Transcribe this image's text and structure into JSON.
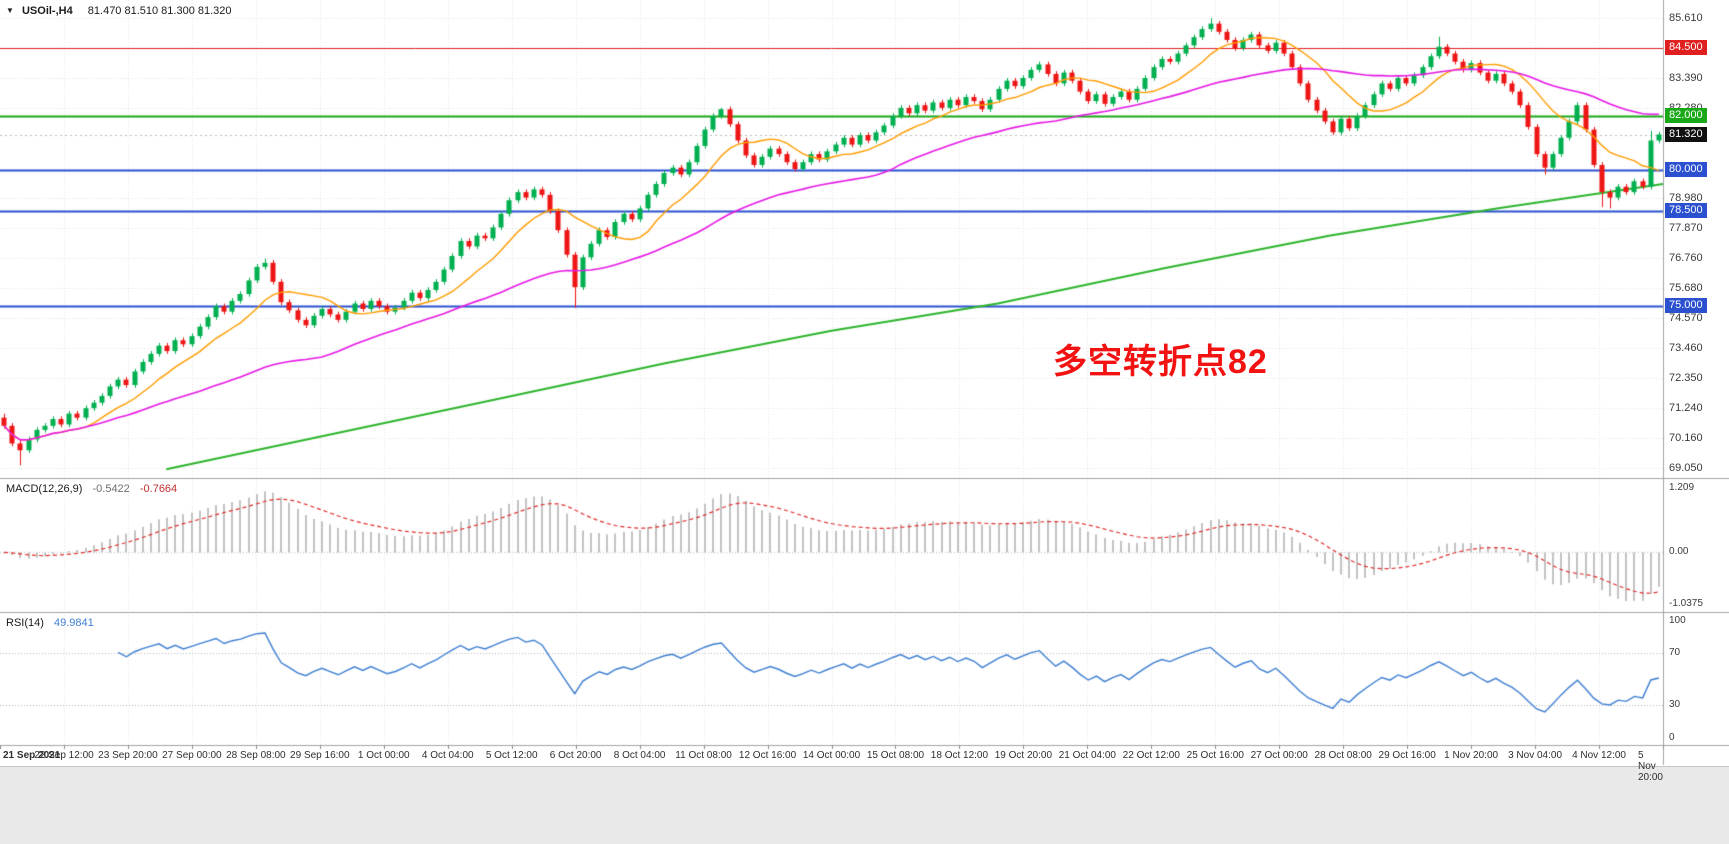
{
  "window": {
    "symbol_timeframe": "USOil-,H4",
    "ohlc": "81.470 81.510 81.300 81.320"
  },
  "annotation": {
    "text": "多空转折点82",
    "color": "#f21212"
  },
  "indicators": {
    "macd": {
      "label": "MACD(12,26,9)",
      "value_main": "-0.5422",
      "value_signal": "-0.7664"
    },
    "rsi": {
      "label": "RSI(14)",
      "value": "49.9841"
    }
  },
  "chart_data": {
    "type": "candlestick",
    "symbol": "USOil",
    "timeframe": "H4",
    "title": "USOil-,H4 81.470 81.510 81.300 81.320",
    "price_range": [
      68.68,
      86.27
    ],
    "y_tick_labels": [
      "85.610",
      "83.390",
      "82.280",
      "78.980",
      "77.870",
      "76.760",
      "75.680",
      "74.570",
      "73.460",
      "72.350",
      "71.240",
      "70.160",
      "69.050"
    ],
    "x_tick_labels": [
      "21 Sep 2021",
      "22 Sep 12:00",
      "23 Sep 20:00",
      "27 Sep 00:00",
      "28 Sep 08:00",
      "29 Sep 16:00",
      "1 Oct 00:00",
      "4 Oct 04:00",
      "5 Oct 12:00",
      "6 Oct 20:00",
      "8 Oct 04:00",
      "11 Oct 08:00",
      "12 Oct 16:00",
      "14 Oct 00:00",
      "15 Oct 08:00",
      "18 Oct 12:00",
      "19 Oct 20:00",
      "21 Oct 04:00",
      "22 Oct 12:00",
      "25 Oct 16:00",
      "27 Oct 00:00",
      "28 Oct 08:00",
      "29 Oct 16:00",
      "1 Nov 20:00",
      "3 Nov 04:00",
      "4 Nov 12:00",
      "5 Nov 20:00"
    ],
    "open_first": 70.9,
    "closes": [
      70.6,
      69.95,
      69.7,
      70.1,
      70.45,
      70.6,
      70.85,
      70.65,
      71.05,
      70.9,
      71.25,
      71.45,
      71.7,
      72.05,
      72.3,
      72.1,
      72.6,
      72.95,
      73.25,
      73.55,
      73.35,
      73.75,
      73.6,
      73.9,
      74.25,
      74.6,
      75.0,
      74.8,
      75.2,
      75.45,
      75.95,
      76.45,
      76.6,
      75.9,
      75.15,
      74.85,
      74.5,
      74.3,
      74.65,
      74.9,
      74.7,
      74.5,
      74.8,
      75.1,
      74.9,
      75.2,
      75.0,
      74.8,
      74.95,
      75.2,
      75.5,
      75.3,
      75.6,
      75.9,
      76.35,
      76.85,
      77.4,
      77.2,
      77.6,
      77.5,
      77.9,
      78.4,
      78.9,
      79.2,
      79.0,
      79.3,
      79.1,
      78.5,
      77.8,
      76.9,
      75.7,
      76.8,
      77.3,
      77.8,
      77.55,
      78.1,
      78.4,
      78.2,
      78.6,
      79.1,
      79.5,
      79.9,
      80.1,
      79.85,
      80.3,
      80.9,
      81.5,
      82.0,
      82.25,
      81.7,
      81.1,
      80.55,
      80.2,
      80.5,
      80.8,
      80.6,
      80.3,
      80.05,
      80.3,
      80.6,
      80.4,
      80.7,
      80.95,
      81.2,
      80.95,
      81.3,
      81.1,
      81.4,
      81.65,
      82.0,
      82.3,
      82.1,
      82.4,
      82.2,
      82.5,
      82.3,
      82.6,
      82.4,
      82.7,
      82.55,
      82.25,
      82.6,
      83.0,
      83.3,
      83.1,
      83.4,
      83.7,
      83.9,
      83.55,
      83.2,
      83.6,
      83.3,
      82.9,
      82.55,
      82.8,
      82.45,
      82.7,
      82.9,
      82.6,
      83.0,
      83.4,
      83.8,
      84.1,
      84.0,
      84.3,
      84.6,
      84.9,
      85.2,
      85.4,
      85.1,
      84.8,
      84.5,
      84.8,
      85.0,
      84.6,
      84.4,
      84.7,
      84.3,
      83.8,
      83.2,
      82.6,
      82.2,
      81.8,
      81.4,
      81.9,
      81.55,
      82.0,
      82.4,
      82.8,
      83.2,
      83.0,
      83.4,
      83.2,
      83.5,
      83.8,
      84.2,
      84.55,
      84.3,
      84.0,
      83.7,
      83.95,
      83.6,
      83.3,
      83.55,
      83.2,
      82.9,
      82.4,
      81.6,
      80.6,
      80.1,
      80.6,
      81.2,
      81.8,
      82.4,
      81.5,
      80.2,
      79.2,
      79.0,
      79.4,
      79.2,
      79.6,
      79.4,
      81.1,
      81.32
    ],
    "wick": 0.1,
    "wick_overrides": [
      {
        "i": 0,
        "high": 71.05
      },
      {
        "i": 2,
        "low": 69.15
      },
      {
        "i": 32,
        "high": 76.75
      },
      {
        "i": 70,
        "low": 74.95
      },
      {
        "i": 88,
        "high": 82.3
      },
      {
        "i": 148,
        "high": 85.6
      },
      {
        "i": 176,
        "high": 84.92
      },
      {
        "i": 189,
        "low": 79.85
      },
      {
        "i": 196,
        "low": 78.65
      },
      {
        "i": 197,
        "low": 78.6
      },
      {
        "i": 202,
        "high": 81.45
      }
    ],
    "hlines": [
      {
        "price": 84.5,
        "label": "84.500",
        "color": "#e02020",
        "width": 1
      },
      {
        "price": 82.0,
        "label": "82.000",
        "color": "#18a818",
        "width": 2
      },
      {
        "price": 80.0,
        "label": "80.000",
        "color": "#2b50d0",
        "width": 2
      },
      {
        "price": 78.5,
        "label": "78.500",
        "color": "#2b50d0",
        "width": 2
      },
      {
        "price": 75.0,
        "label": "75.000",
        "color": "#2b50d0",
        "width": 2
      }
    ],
    "current_price": {
      "price": 81.32,
      "label": "81.320",
      "badge_color": "#111111"
    },
    "ma": {
      "fast": {
        "period": 10,
        "color": "#ff9c00"
      },
      "mid": {
        "period": 40,
        "color": "#e619e6"
      },
      "slow": {
        "color": "#2db52d",
        "keyframes": [
          [
            0.1,
            69.0
          ],
          [
            0.2,
            70.3
          ],
          [
            0.3,
            71.6
          ],
          [
            0.4,
            72.9
          ],
          [
            0.5,
            74.1
          ],
          [
            0.6,
            75.1
          ],
          [
            0.7,
            76.4
          ],
          [
            0.8,
            77.6
          ],
          [
            0.9,
            78.6
          ],
          [
            1.0,
            79.5
          ]
        ]
      }
    },
    "macd": {
      "axis_top": "1.209",
      "axis_zero": "0.00",
      "axis_bottom": "-1.0375"
    },
    "rsi": {
      "levels": [
        70,
        30
      ],
      "axis_labels": [
        "100",
        "70",
        "30",
        "0"
      ]
    },
    "colors": {
      "up": "#00b050",
      "down": "#ee1515",
      "grid": "#e5e5e5",
      "macd_hist": "#c3c3c3",
      "macd_signal": "#e03030",
      "rsi": "#3e7fd2"
    }
  }
}
